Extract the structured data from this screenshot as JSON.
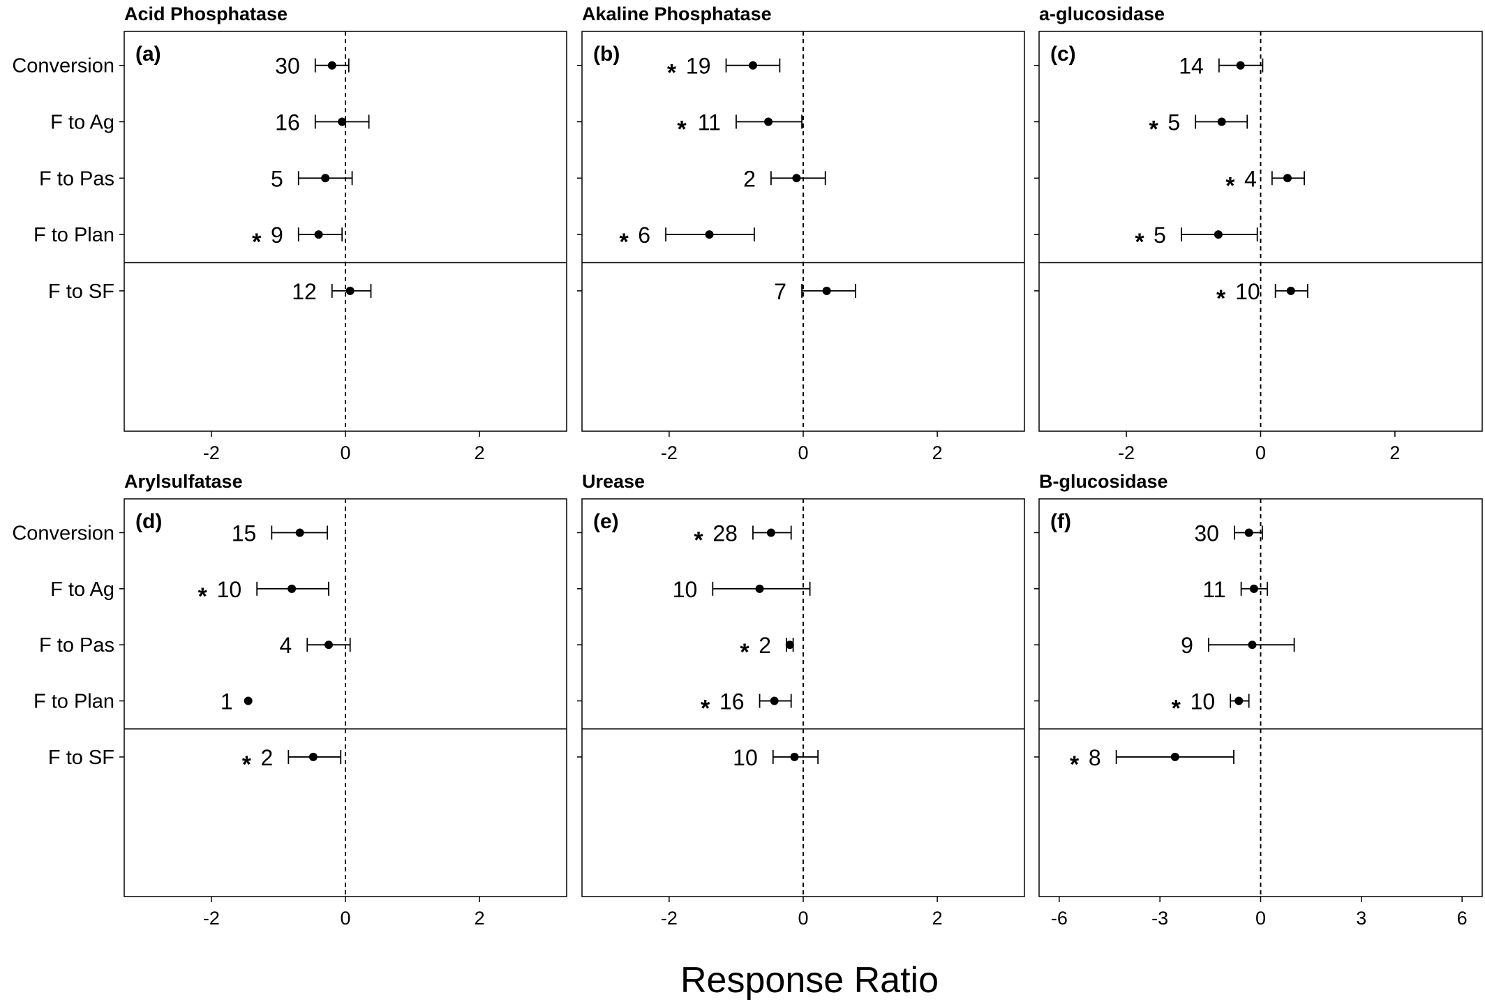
{
  "x_axis_label": "Response Ratio",
  "chart_data": [
    {
      "type": "scatter",
      "panel": "(a)",
      "title": "Acid Phosphatase",
      "categories": [
        "Conversion",
        "F to Ag",
        "F to Pas",
        "F to Plan",
        "F to SF"
      ],
      "xlim": [
        -3.3,
        3.3
      ],
      "xticks": [
        -2,
        0,
        2
      ],
      "separator_after_index": 3,
      "points": [
        {
          "category": "Conversion",
          "mean": -0.2,
          "lo": -0.45,
          "hi": 0.05,
          "n": "30",
          "significant": false
        },
        {
          "category": "F to Ag",
          "mean": -0.05,
          "lo": -0.45,
          "hi": 0.35,
          "n": "16",
          "significant": false
        },
        {
          "category": "F to Pas",
          "mean": -0.3,
          "lo": -0.7,
          "hi": 0.1,
          "n": "5",
          "significant": false
        },
        {
          "category": "F to Plan",
          "mean": -0.4,
          "lo": -0.7,
          "hi": -0.05,
          "n": "9",
          "significant": true
        },
        {
          "category": "F to SF",
          "mean": 0.07,
          "lo": -0.2,
          "hi": 0.38,
          "n": "12",
          "significant": false
        }
      ]
    },
    {
      "type": "scatter",
      "panel": "(b)",
      "title": "Akaline Phosphatase",
      "categories": [
        "Conversion",
        "F to Ag",
        "F to Pas",
        "F to Plan",
        "F to SF"
      ],
      "xlim": [
        -3.3,
        3.3
      ],
      "xticks": [
        -2,
        0,
        2
      ],
      "separator_after_index": 3,
      "points": [
        {
          "category": "Conversion",
          "mean": -0.75,
          "lo": -1.15,
          "hi": -0.35,
          "n": "19",
          "significant": true
        },
        {
          "category": "F to Ag",
          "mean": -0.52,
          "lo": -1.0,
          "hi": -0.02,
          "n": "11",
          "significant": true
        },
        {
          "category": "F to Pas",
          "mean": -0.1,
          "lo": -0.48,
          "hi": 0.33,
          "n": "2",
          "significant": false
        },
        {
          "category": "F to Plan",
          "mean": -1.4,
          "lo": -2.05,
          "hi": -0.73,
          "n": "6",
          "significant": true
        },
        {
          "category": "F to SF",
          "mean": 0.35,
          "lo": -0.02,
          "hi": 0.78,
          "n": "7",
          "significant": false
        }
      ]
    },
    {
      "type": "scatter",
      "panel": "(c)",
      "title": "a-glucosidase",
      "categories": [
        "Conversion",
        "F to Ag",
        "F to Pas",
        "F to Plan",
        "F to SF"
      ],
      "xlim": [
        -3.3,
        3.3
      ],
      "xticks": [
        -2,
        0,
        2
      ],
      "separator_after_index": 3,
      "points": [
        {
          "category": "Conversion",
          "mean": -0.3,
          "lo": -0.62,
          "hi": 0.03,
          "n": "14",
          "significant": false
        },
        {
          "category": "F to Ag",
          "mean": -0.58,
          "lo": -0.97,
          "hi": -0.2,
          "n": "5",
          "significant": true
        },
        {
          "category": "F to Pas",
          "mean": 0.4,
          "lo": 0.17,
          "hi": 0.65,
          "n": "4",
          "significant": true
        },
        {
          "category": "F to Plan",
          "mean": -0.63,
          "lo": -1.18,
          "hi": -0.05,
          "n": "5",
          "significant": true
        },
        {
          "category": "F to SF",
          "mean": 0.45,
          "lo": 0.22,
          "hi": 0.7,
          "n": "10",
          "significant": true
        }
      ]
    },
    {
      "type": "scatter",
      "panel": "(d)",
      "title": "Arylsulfatase",
      "categories": [
        "Conversion",
        "F to Ag",
        "F to Pas",
        "F to Plan",
        "F to SF"
      ],
      "xlim": [
        -3.3,
        3.3
      ],
      "xticks": [
        -2,
        0,
        2
      ],
      "separator_after_index": 3,
      "points": [
        {
          "category": "Conversion",
          "mean": -0.68,
          "lo": -1.1,
          "hi": -0.27,
          "n": "15",
          "significant": false
        },
        {
          "category": "F to Ag",
          "mean": -0.8,
          "lo": -1.32,
          "hi": -0.25,
          "n": "10",
          "significant": true
        },
        {
          "category": "F to Pas",
          "mean": -0.25,
          "lo": -0.57,
          "hi": 0.07,
          "n": "4",
          "significant": false
        },
        {
          "category": "F to Plan",
          "mean": -1.45,
          "lo": -1.45,
          "hi": -1.45,
          "n": "1",
          "significant": false
        },
        {
          "category": "F to SF",
          "mean": -0.48,
          "lo": -0.85,
          "hi": -0.07,
          "n": "2",
          "significant": true
        }
      ]
    },
    {
      "type": "scatter",
      "panel": "(e)",
      "title": "Urease",
      "categories": [
        "Conversion",
        "F to Ag",
        "F to Pas",
        "F to Plan",
        "F to SF"
      ],
      "xlim": [
        -3.3,
        3.3
      ],
      "xticks": [
        -2,
        0,
        2
      ],
      "separator_after_index": 3,
      "points": [
        {
          "category": "Conversion",
          "mean": -0.48,
          "lo": -0.75,
          "hi": -0.18,
          "n": "28",
          "significant": true
        },
        {
          "category": "F to Ag",
          "mean": -0.65,
          "lo": -1.35,
          "hi": 0.1,
          "n": "10",
          "significant": false
        },
        {
          "category": "F to Pas",
          "mean": -0.2,
          "lo": -0.25,
          "hi": -0.15,
          "n": "2",
          "significant": true
        },
        {
          "category": "F to Plan",
          "mean": -0.43,
          "lo": -0.65,
          "hi": -0.18,
          "n": "16",
          "significant": true
        },
        {
          "category": "F to SF",
          "mean": -0.13,
          "lo": -0.45,
          "hi": 0.22,
          "n": "10",
          "significant": false
        }
      ]
    },
    {
      "type": "scatter",
      "panel": "(f)",
      "title": "B-glucosidase",
      "categories": [
        "Conversion",
        "F to Ag",
        "F to Pas",
        "F to Plan",
        "F to SF"
      ],
      "xlim": [
        -6.6,
        6.6
      ],
      "xticks": [
        -6,
        -3,
        0,
        3,
        6
      ],
      "separator_after_index": 3,
      "points": [
        {
          "category": "Conversion",
          "mean": -0.35,
          "lo": -0.78,
          "hi": 0.05,
          "n": "30",
          "significant": false
        },
        {
          "category": "F to Ag",
          "mean": -0.2,
          "lo": -0.58,
          "hi": 0.2,
          "n": "11",
          "significant": false
        },
        {
          "category": "F to Pas",
          "mean": -0.25,
          "lo": -1.55,
          "hi": 1.0,
          "n": "9",
          "significant": false
        },
        {
          "category": "F to Plan",
          "mean": -0.65,
          "lo": -0.9,
          "hi": -0.35,
          "n": "10",
          "significant": true
        },
        {
          "category": "F to SF",
          "mean": -2.55,
          "lo": -4.3,
          "hi": -0.8,
          "n": "8",
          "significant": true
        }
      ]
    }
  ]
}
